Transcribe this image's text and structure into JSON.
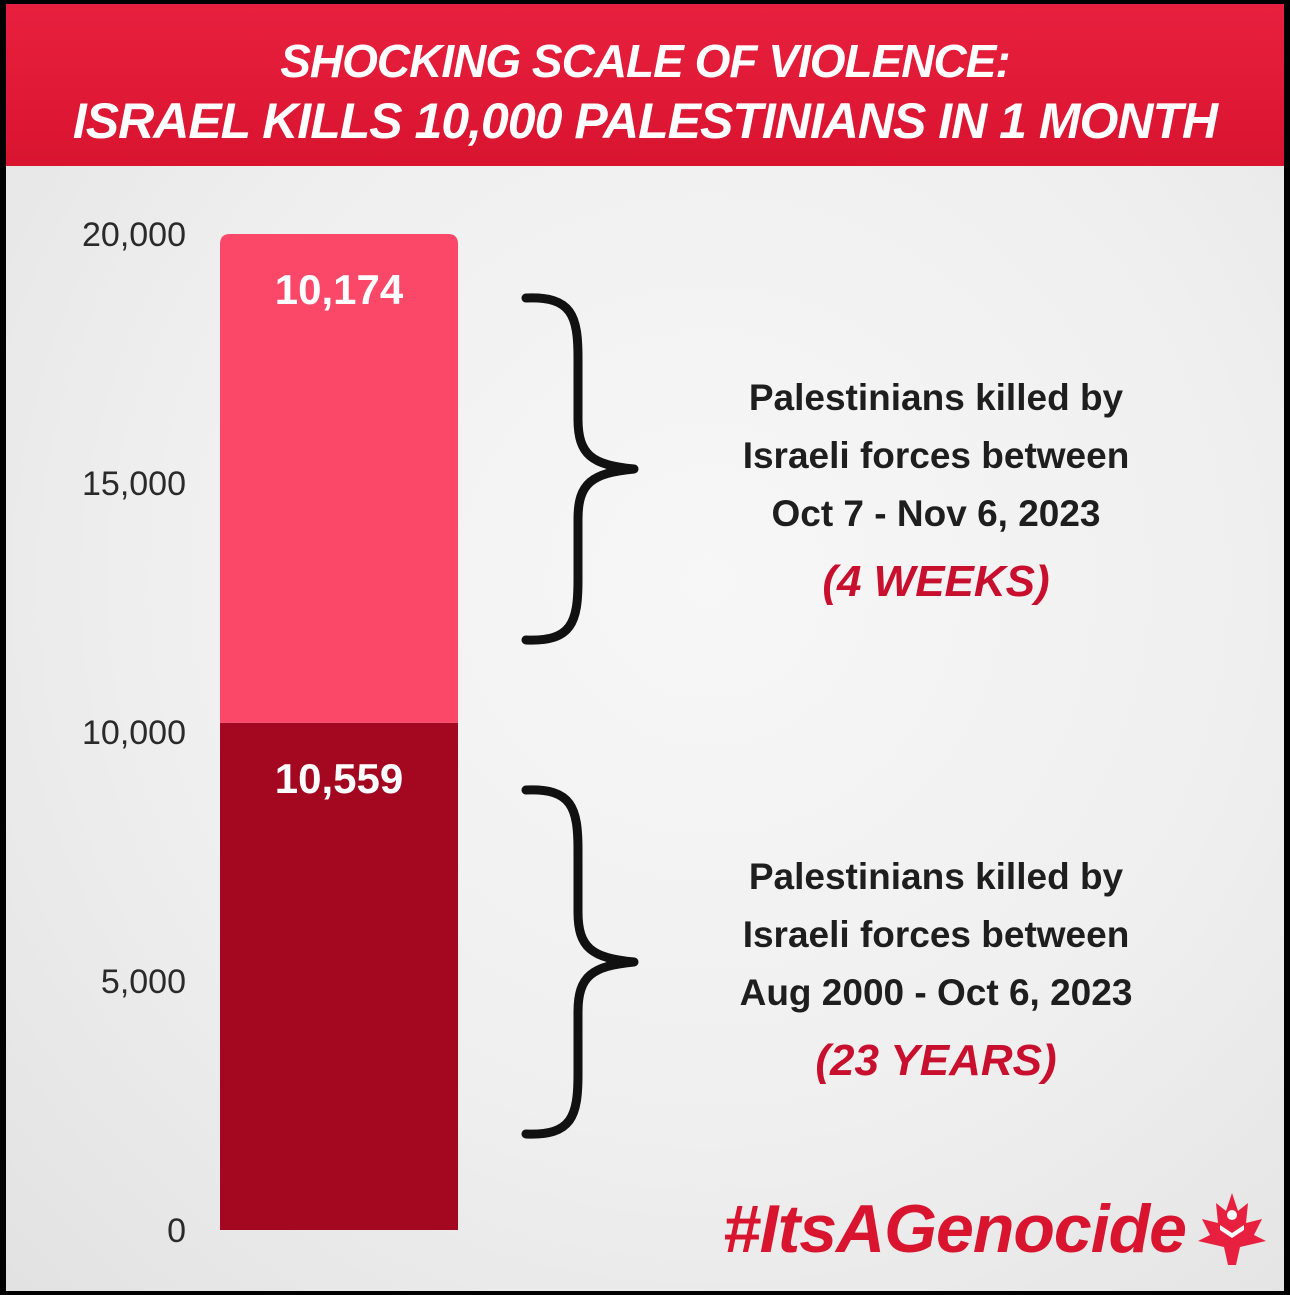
{
  "header": {
    "title_line1": "SHOCKING SCALE OF VIOLENCE:",
    "title_line2": "ISRAEL KILLS 10,000 PALESTINIANS IN 1 MONTH"
  },
  "chart_data": {
    "type": "bar",
    "stacked": true,
    "ylim": [
      0,
      20000
    ],
    "yticks": [
      "0",
      "5,000",
      "10,000",
      "15,000",
      "20,000"
    ],
    "ytick_values": [
      0,
      5000,
      10000,
      15000,
      20000
    ],
    "grid": false,
    "series": [
      {
        "label": "10,559",
        "value": 10559,
        "color": "#a40820",
        "annotation": [
          "Palestinians killed by",
          "Israeli forces between",
          "Aug 2000 - Oct 6, 2023"
        ],
        "duration": "(23 YEARS)"
      },
      {
        "label": "10,174",
        "value": 10174,
        "color": "#fb4868",
        "annotation": [
          "Palestinians killed by",
          "Israeli forces between",
          "Oct 7 - Nov 6, 2023"
        ],
        "duration": "(4 WEEKS)"
      }
    ]
  },
  "footer": {
    "hashtag": "#ItsAGenocide",
    "logo_icon": "maple-leaf-logo-icon"
  }
}
